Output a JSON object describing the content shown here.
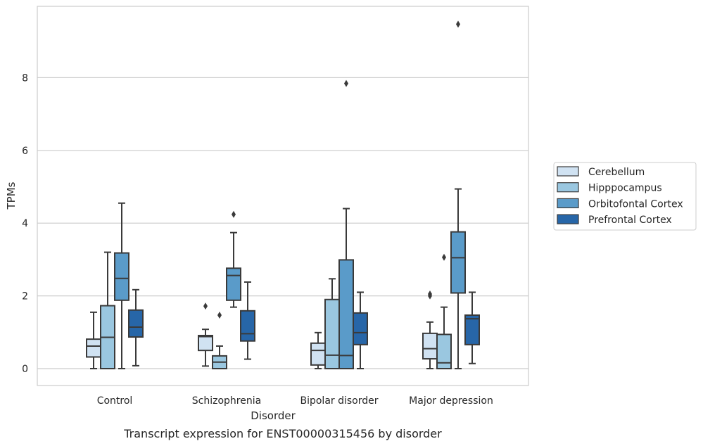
{
  "chart_data": {
    "type": "boxplot",
    "title": "",
    "caption": "Transcript expression for ENST00000315456 by disorder",
    "xlabel": "Disorder",
    "ylabel": "TPMs",
    "ylim": [
      -0.45,
      9.95
    ],
    "yticks": [
      0,
      2,
      4,
      6,
      8
    ],
    "grid": true,
    "legend_position": "right",
    "categories": [
      "Control",
      "Schizophrenia",
      "Bipolar disorder",
      "Major depression"
    ],
    "series": [
      {
        "name": "Cerebellum",
        "color": "#d0e2f2",
        "boxes": [
          {
            "whislo": 0.0,
            "q1": 0.32,
            "med": 0.62,
            "q3": 0.81,
            "whishi": 1.55,
            "fliers": []
          },
          {
            "whislo": 0.07,
            "q1": 0.5,
            "med": 0.88,
            "q3": 0.91,
            "whishi": 1.08,
            "fliers": [
              1.72
            ]
          },
          {
            "whislo": 0.0,
            "q1": 0.1,
            "med": 0.5,
            "q3": 0.7,
            "whishi": 0.99,
            "fliers": []
          },
          {
            "whislo": 0.0,
            "q1": 0.27,
            "med": 0.55,
            "q3": 0.97,
            "whishi": 1.28,
            "fliers": [
              2.0,
              2.05
            ]
          }
        ]
      },
      {
        "name": "Hipppocampus",
        "color": "#9ac7e0",
        "boxes": [
          {
            "whislo": 0.0,
            "q1": 0.0,
            "med": 0.86,
            "q3": 1.73,
            "whishi": 3.2,
            "fliers": []
          },
          {
            "whislo": 0.0,
            "q1": 0.0,
            "med": 0.18,
            "q3": 0.35,
            "whishi": 0.62,
            "fliers": [
              1.47
            ]
          },
          {
            "whislo": 0.0,
            "q1": 0.0,
            "med": 0.37,
            "q3": 1.9,
            "whishi": 2.47,
            "fliers": []
          },
          {
            "whislo": 0.0,
            "q1": 0.0,
            "med": 0.16,
            "q3": 0.94,
            "whishi": 1.69,
            "fliers": [
              3.06
            ]
          }
        ]
      },
      {
        "name": "Orbitofontal Cortex",
        "color": "#5a9bc9",
        "boxes": [
          {
            "whislo": 0.0,
            "q1": 1.88,
            "med": 2.48,
            "q3": 3.18,
            "whishi": 4.55,
            "fliers": []
          },
          {
            "whislo": 1.69,
            "q1": 1.88,
            "med": 2.56,
            "q3": 2.76,
            "whishi": 3.74,
            "fliers": [
              4.24
            ]
          },
          {
            "whislo": 0.0,
            "q1": 0.0,
            "med": 0.36,
            "q3": 2.99,
            "whishi": 4.4,
            "fliers": [
              7.84
            ]
          },
          {
            "whislo": 0.0,
            "q1": 2.08,
            "med": 3.05,
            "q3": 3.76,
            "whishi": 4.94,
            "fliers": [
              9.47
            ]
          }
        ]
      },
      {
        "name": "Prefrontal Cortex",
        "color": "#2766a8",
        "boxes": [
          {
            "whislo": 0.08,
            "q1": 0.87,
            "med": 1.14,
            "q3": 1.61,
            "whishi": 2.17,
            "fliers": []
          },
          {
            "whislo": 0.26,
            "q1": 0.76,
            "med": 0.96,
            "q3": 1.59,
            "whishi": 2.38,
            "fliers": []
          },
          {
            "whislo": 0.0,
            "q1": 0.66,
            "med": 0.99,
            "q3": 1.53,
            "whishi": 2.1,
            "fliers": []
          },
          {
            "whislo": 0.14,
            "q1": 0.66,
            "med": 1.37,
            "q3": 1.47,
            "whishi": 2.1,
            "fliers": []
          }
        ]
      }
    ]
  }
}
